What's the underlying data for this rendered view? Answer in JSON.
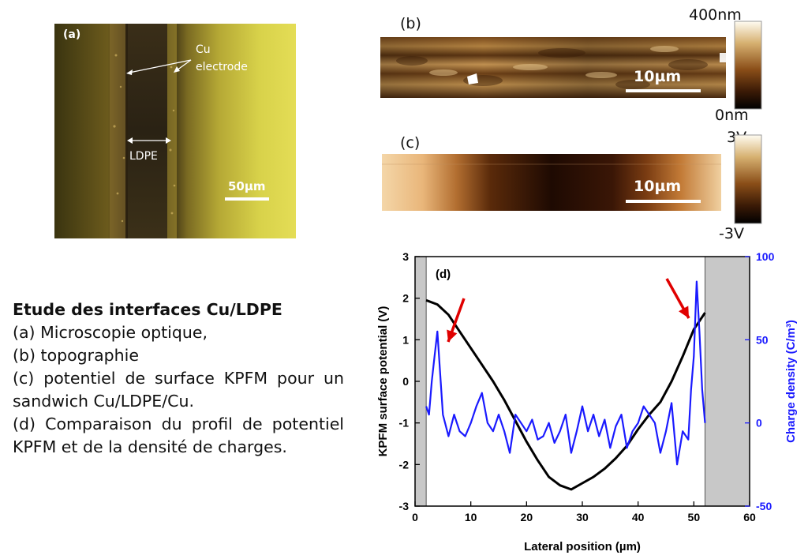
{
  "panel_a": {
    "label": "(a)",
    "electrode_label_line1": "Cu",
    "electrode_label_line2": "electrode",
    "ldpe_label": "LDPE",
    "scalebar": "50µm"
  },
  "panel_b": {
    "label": "(b)",
    "scalebar": "10µm",
    "colorbar_max": "400nm",
    "colorbar_min": "0nm"
  },
  "panel_c": {
    "label": "(c)",
    "scalebar": "10µm",
    "colorbar_max": "3V",
    "colorbar_min": "-3V"
  },
  "caption": {
    "title": "Etude des interfaces Cu/LDPE",
    "lines": [
      "(a) Microscopie optique,",
      "(b) topographie",
      "(c) potentiel de surface KPFM pour un sandwich Cu/LDPE/Cu.",
      "(d) Comparaison du profil de potentiel KPFM et de la densité de charges."
    ]
  },
  "chart_data": {
    "type": "line",
    "panel_label": "(d)",
    "xlabel": "Lateral position (µm)",
    "ylabel": "KPFM surface potential (V)",
    "ylabel2": "Charge density (C/m³)",
    "xlim": [
      0,
      60
    ],
    "ylim": [
      -3,
      3
    ],
    "y2lim": [
      -50,
      100
    ],
    "x_ticks": [
      "0",
      "10",
      "20",
      "30",
      "40",
      "50",
      "60"
    ],
    "y_ticks": [
      "-3",
      "-2",
      "-1",
      "0",
      "1",
      "2",
      "3"
    ],
    "y2_ticks": [
      "-50",
      "0",
      "50",
      "100"
    ],
    "shaded_regions": [
      [
        0,
        2
      ],
      [
        52,
        60
      ]
    ],
    "series": [
      {
        "axis": "left",
        "color": "#000000",
        "x": [
          2,
          4,
          6,
          8,
          10,
          12,
          14,
          16,
          18,
          20,
          22,
          24,
          26,
          28,
          30,
          32,
          34,
          36,
          38,
          40,
          42,
          44,
          46,
          48,
          50,
          52
        ],
        "y": [
          1.95,
          1.85,
          1.6,
          1.2,
          0.8,
          0.4,
          0.0,
          -0.45,
          -0.95,
          -1.45,
          -1.9,
          -2.3,
          -2.5,
          -2.6,
          -2.45,
          -2.3,
          -2.1,
          -1.85,
          -1.55,
          -1.15,
          -0.8,
          -0.5,
          0.0,
          0.6,
          1.25,
          1.65
        ]
      },
      {
        "axis": "right",
        "color": "#1a1aff",
        "x": [
          2,
          2.5,
          3,
          3.5,
          4,
          4.5,
          5,
          6,
          7,
          8,
          9,
          10,
          11,
          12,
          13,
          14,
          15,
          16,
          17,
          18,
          19,
          20,
          21,
          22,
          23,
          24,
          25,
          26,
          27,
          28,
          29,
          30,
          31,
          32,
          33,
          34,
          35,
          36,
          37,
          38,
          39,
          40,
          41,
          42,
          43,
          44,
          45,
          46,
          47,
          48,
          49,
          49.5,
          50,
          50.5,
          51,
          51.5,
          52
        ],
        "y": [
          10,
          5,
          25,
          40,
          55,
          30,
          5,
          -8,
          5,
          -5,
          -8,
          0,
          10,
          18,
          0,
          -5,
          5,
          -5,
          -18,
          5,
          0,
          -5,
          2,
          -10,
          -8,
          0,
          -12,
          -5,
          5,
          -18,
          -5,
          10,
          -5,
          5,
          -8,
          2,
          -15,
          -2,
          5,
          -15,
          -5,
          0,
          10,
          5,
          0,
          -18,
          -5,
          12,
          -25,
          -5,
          -10,
          20,
          40,
          85,
          55,
          20,
          0
        ]
      }
    ]
  }
}
